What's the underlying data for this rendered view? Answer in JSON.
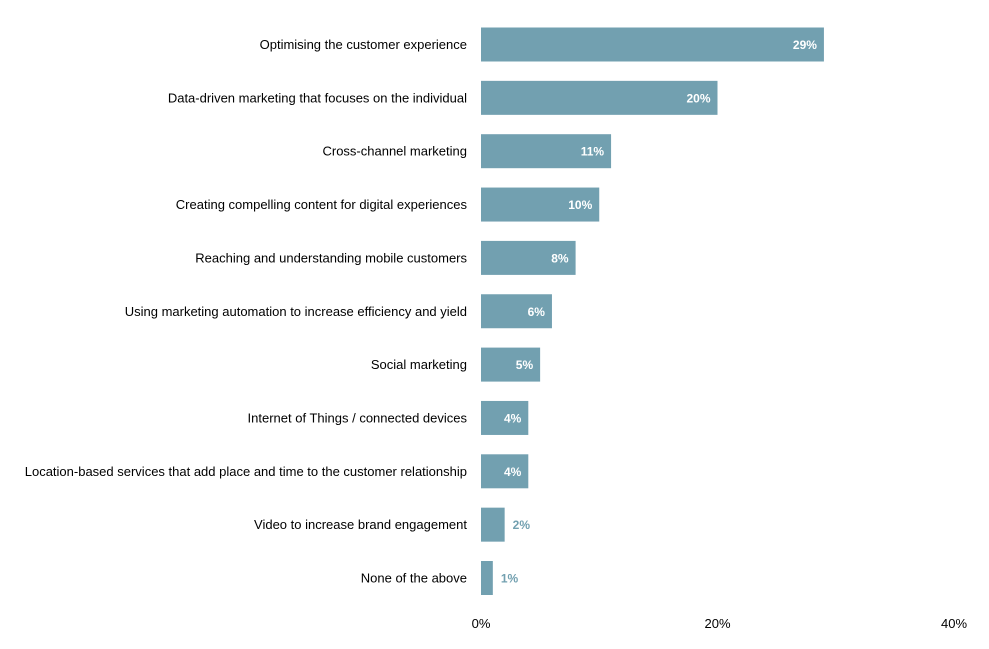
{
  "chart_data": {
    "type": "bar",
    "orientation": "horizontal",
    "title": "",
    "xlabel": "",
    "ylabel": "",
    "categories": [
      "Optimising the customer experience",
      "Data-driven marketing that focuses on the individual",
      "Cross-channel marketing",
      "Creating compelling content for digital experiences",
      "Reaching and understanding mobile customers",
      "Using marketing automation to increase efficiency and yield",
      "Social marketing",
      "Internet of Things / connected devices",
      "Location-based services that add place and time to the customer relationship",
      "Video to increase brand engagement",
      "None of the above"
    ],
    "values": [
      29,
      20,
      11,
      10,
      8,
      6,
      5,
      4,
      4,
      2,
      1
    ],
    "value_labels": [
      "29%",
      "20%",
      "11%",
      "10%",
      "8%",
      "6%",
      "5%",
      "4%",
      "4%",
      "2%",
      "1%"
    ],
    "xlim": [
      0,
      40
    ],
    "ticks": [
      0,
      20,
      40
    ],
    "tick_labels": [
      "0%",
      "20%",
      "40%"
    ],
    "grid": false,
    "legend": "none",
    "bar_color": "#72a0b0",
    "inside_label_color": "#ffffff",
    "outside_label_color": "#72a0b0"
  }
}
